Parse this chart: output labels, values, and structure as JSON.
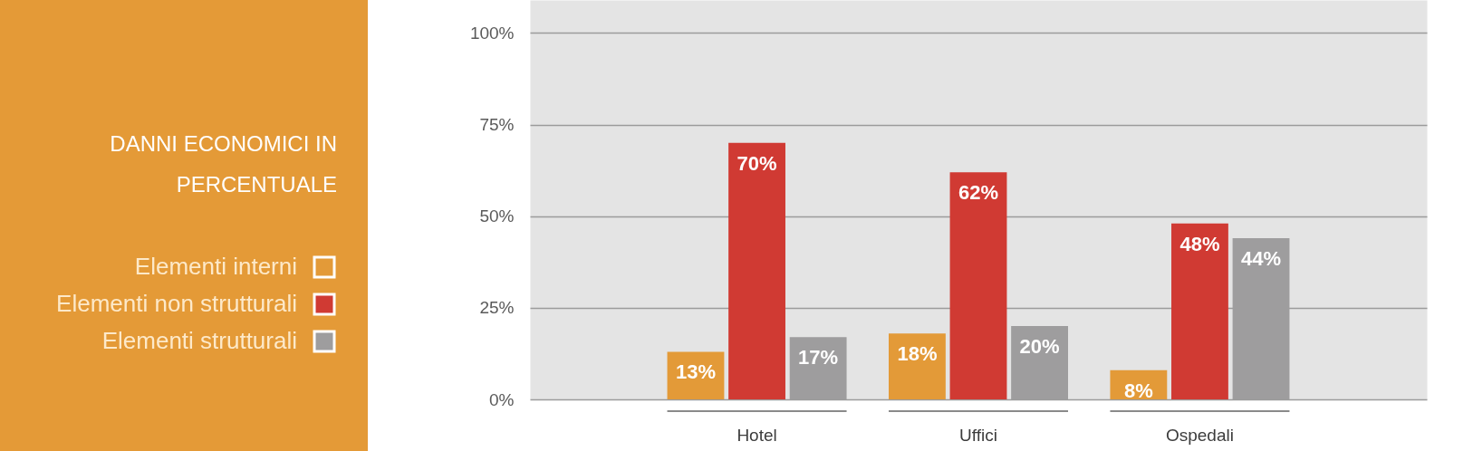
{
  "chart_data": {
    "type": "bar",
    "title": "DANNI ECONOMICI IN PERCENTUALE",
    "categories": [
      "Hotel",
      "Uffici",
      "Ospedali"
    ],
    "series": [
      {
        "name": "Elementi interni",
        "color": "#e39a38",
        "values": [
          13,
          18,
          8
        ],
        "value_labels": [
          "13%",
          "18%",
          "8%"
        ]
      },
      {
        "name": "Elementi non strutturali",
        "color": "#d03a33",
        "values": [
          70,
          62,
          48
        ],
        "value_labels": [
          "70%",
          "62%",
          "48%"
        ]
      },
      {
        "name": "Elementi strutturali",
        "color": "#9e9d9e",
        "values": [
          17,
          20,
          44
        ],
        "value_labels": [
          "17%",
          "20%",
          "44%"
        ]
      }
    ],
    "ylim": [
      0,
      109
    ],
    "yticks": [
      {
        "value": 0,
        "label": "0%"
      },
      {
        "value": 25,
        "label": "25%"
      },
      {
        "value": 50,
        "label": "50%"
      },
      {
        "value": 75,
        "label": "75%"
      },
      {
        "value": 100,
        "label": "100%"
      }
    ],
    "grid": "y",
    "legend": "left"
  }
}
